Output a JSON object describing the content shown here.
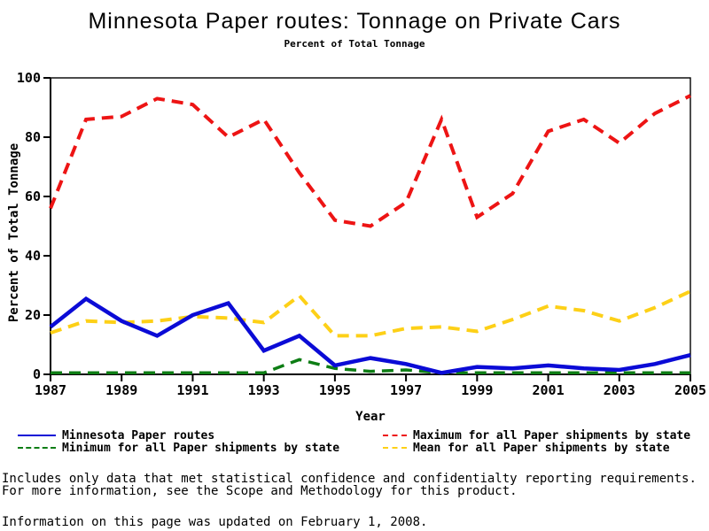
{
  "chart_data": {
    "type": "line",
    "title": "Minnesota Paper routes: Tonnage on Private Cars",
    "subtitle": "Percent of Total Tonnage",
    "xlabel": "Year",
    "ylabel": "Percent of Total Tonnage",
    "xlim": [
      1987,
      2005
    ],
    "ylim": [
      0,
      100
    ],
    "x_ticks": [
      1987,
      1989,
      1991,
      1993,
      1995,
      1997,
      1999,
      2001,
      2003,
      2005
    ],
    "y_ticks": [
      0,
      20,
      40,
      60,
      80,
      100
    ],
    "grid": false,
    "legend_position": "bottom",
    "x": [
      1987,
      1988,
      1989,
      1990,
      1991,
      1992,
      1993,
      1994,
      1995,
      1996,
      1997,
      1998,
      1999,
      2000,
      2001,
      2002,
      2003,
      2004,
      2005
    ],
    "series": [
      {
        "name": "Minnesota Paper routes",
        "color": "#0b0bd6",
        "style": "solid",
        "width": 4.5,
        "values": [
          16,
          25.5,
          18,
          13,
          20,
          24,
          8,
          13,
          3,
          5.5,
          3.5,
          0.5,
          2.5,
          2,
          3,
          2,
          1.5,
          3.5,
          6.5
        ]
      },
      {
        "name": "Maximum for all Paper shipments by state",
        "color": "#ed1414",
        "style": "dashed",
        "width": 4,
        "values": [
          56,
          86,
          87,
          93,
          91,
          80,
          86,
          68,
          52,
          50,
          58,
          86,
          53,
          61,
          82,
          86,
          78,
          88,
          94
        ]
      },
      {
        "name": "Minimum for all Paper shipments by state",
        "color": "#0d7d14",
        "style": "dashed",
        "width": 3.5,
        "values": [
          0.5,
          0.5,
          0.5,
          0.5,
          0.5,
          0.5,
          0.5,
          5,
          2,
          1,
          1.5,
          0.5,
          0.5,
          0.5,
          0.5,
          0.5,
          0.5,
          0.5,
          0.5
        ]
      },
      {
        "name": "Mean for all Paper shipments by state",
        "color": "#fdd017",
        "style": "dashed",
        "width": 4,
        "values": [
          14,
          18,
          17.5,
          18,
          19.5,
          19,
          17.5,
          26.5,
          13,
          13,
          15.5,
          16,
          14.5,
          18.5,
          23,
          21.5,
          18,
          22.5,
          28
        ]
      }
    ]
  },
  "footnotes": {
    "line1": "Includes only data that met statistical confidence and confidentialty reporting requirements.",
    "line2": "For more information, see the Scope and Methodology for this product.",
    "updated": "Information on this page was updated on February 1, 2008."
  }
}
